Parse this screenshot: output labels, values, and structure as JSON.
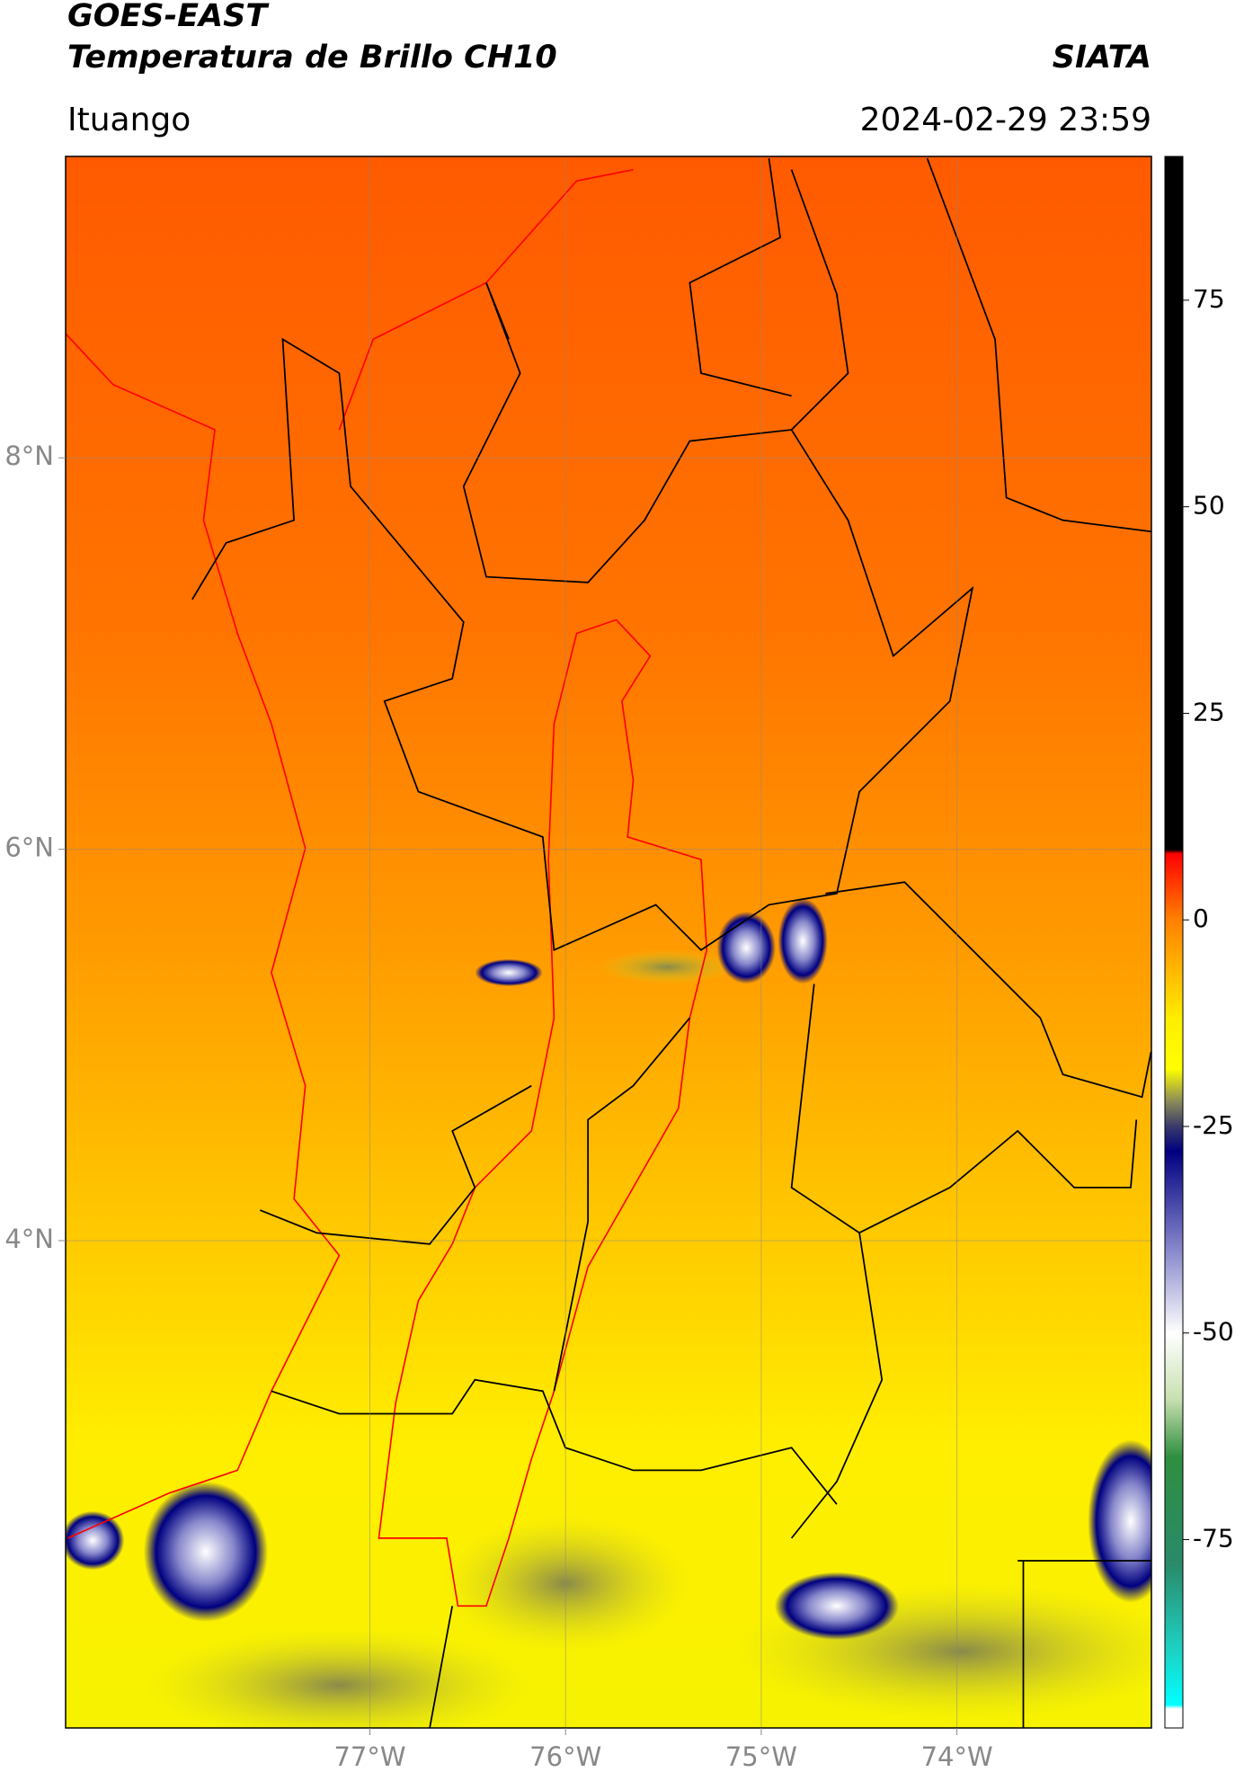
{
  "header": {
    "title": "GOES-EAST",
    "subtitle": "Temperatura de Brillo CH10",
    "source": "SIATA",
    "location": "Ituango",
    "datetime": "2024-02-29 23:59"
  },
  "map": {
    "lon_range": [
      -78.555,
      -73.006
    ],
    "lat_range": [
      1.51,
      9.54
    ],
    "lon_ticks": [
      {
        "value": -77,
        "label": "77°W"
      },
      {
        "value": -76,
        "label": "76°W"
      },
      {
        "value": -75,
        "label": "75°W"
      },
      {
        "value": -74,
        "label": "74°W"
      }
    ],
    "lat_ticks": [
      {
        "value": 8,
        "label": "8°N"
      },
      {
        "value": 6,
        "label": "6°N"
      },
      {
        "value": 4,
        "label": "4°N"
      }
    ]
  },
  "colorbar": {
    "range": [
      -97.8,
      92.4
    ],
    "ticks": [
      75,
      50,
      25,
      0,
      -25,
      -50,
      -75
    ],
    "stops": [
      {
        "value": 92.4,
        "color": "#000000"
      },
      {
        "value": 8.5,
        "color": "#000000"
      },
      {
        "value": 8,
        "color": "#ff0000"
      },
      {
        "value": 0,
        "color": "#ff8000"
      },
      {
        "value": -12,
        "color": "#ffee00"
      },
      {
        "value": -18,
        "color": "#ffff00"
      },
      {
        "value": -22,
        "color": "#8a8a5a"
      },
      {
        "value": -25,
        "color": "#3a3a6a"
      },
      {
        "value": -28,
        "color": "#000080"
      },
      {
        "value": -40,
        "color": "#8888cc"
      },
      {
        "value": -50,
        "color": "#ffffff"
      },
      {
        "value": -58,
        "color": "#c8e0b0"
      },
      {
        "value": -65,
        "color": "#2f8f3f"
      },
      {
        "value": -78,
        "color": "#2a8a6a"
      },
      {
        "value": -88,
        "color": "#1ecfc0"
      },
      {
        "value": -95,
        "color": "#00ffff"
      },
      {
        "value": -95.5,
        "color": "#ffffff"
      },
      {
        "value": -97.8,
        "color": "#ffffff"
      }
    ]
  }
}
